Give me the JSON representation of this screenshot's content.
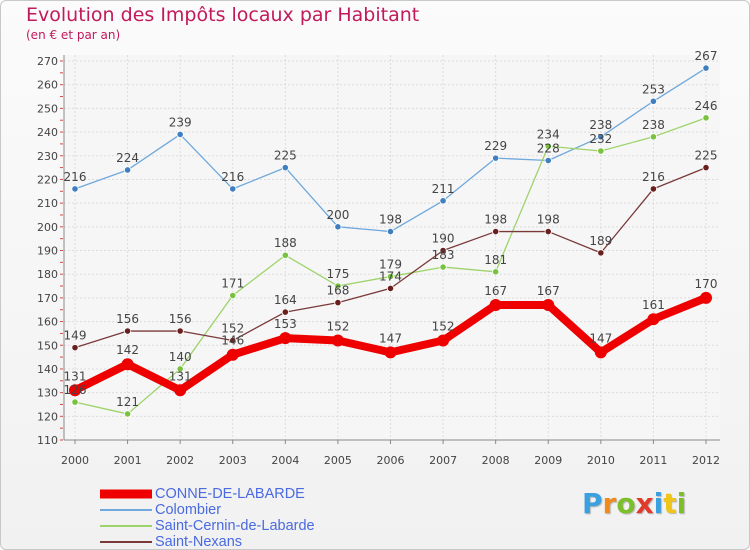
{
  "header": {
    "title": "Evolution des Impôts locaux par Habitant",
    "subtitle": "(en € et par an)"
  },
  "logo": {
    "text": "Proxiti",
    "letters": [
      {
        "ch": "P",
        "color": "#3aa0e0"
      },
      {
        "ch": "r",
        "color": "#f08a1c"
      },
      {
        "ch": "o",
        "color": "#7cbf2a"
      },
      {
        "ch": "x",
        "color": "#e23a2a"
      },
      {
        "ch": "i",
        "color": "#3aa0e0"
      },
      {
        "ch": "t",
        "color": "#f0c419"
      },
      {
        "ch": "i",
        "color": "#7cbf2a"
      }
    ]
  },
  "chart_data": {
    "type": "line",
    "title": "Evolution des Impôts locaux par Habitant",
    "subtitle": "(en € et par an)",
    "xlabel": "",
    "ylabel": "",
    "x": [
      "2000",
      "2001",
      "2002",
      "2003",
      "2004",
      "2005",
      "2006",
      "2007",
      "2008",
      "2009",
      "2010",
      "2011",
      "2012"
    ],
    "ylim": [
      110,
      270
    ],
    "yticks": [
      110,
      120,
      130,
      140,
      150,
      160,
      170,
      180,
      190,
      200,
      210,
      220,
      230,
      240,
      250,
      260,
      270
    ],
    "ytick_labels": [
      "110",
      "120",
      "130",
      "140",
      "150",
      "160",
      "170",
      "180",
      "190",
      "200",
      "210",
      "220",
      "230",
      "240",
      "250",
      "260",
      "270"
    ],
    "grid": true,
    "legend_position": "bottom-left",
    "series": [
      {
        "name": "CONNE-DE-LABARDE",
        "color": "#ee0000",
        "marker_color": "#ee0000",
        "thick": true,
        "values": [
          131,
          142,
          131,
          146,
          153,
          152,
          147,
          152,
          167,
          167,
          147,
          161,
          170
        ],
        "labels": [
          "131",
          "142",
          "131",
          "146",
          "153",
          "152",
          "147",
          "152",
          "167",
          "167",
          "147",
          "161",
          "170"
        ]
      },
      {
        "name": "Colombier",
        "color": "#6fa8dc",
        "marker_color": "#3f7fc0",
        "thick": false,
        "values": [
          216,
          224,
          239,
          216,
          225,
          200,
          198,
          211,
          229,
          228,
          238,
          253,
          267
        ],
        "labels": [
          "216",
          "224",
          "239",
          "216",
          "225",
          "200",
          "198",
          "211",
          "229",
          "228",
          "238",
          "253",
          "267"
        ]
      },
      {
        "name": "Saint-Cernin-de-Labarde",
        "color": "#9ed36a",
        "marker_color": "#79c23f",
        "thick": false,
        "values": [
          126,
          121,
          140,
          171,
          188,
          175,
          179,
          183,
          181,
          234,
          232,
          238,
          246
        ],
        "labels": [
          "126",
          "121",
          "140",
          "171",
          "188",
          "175",
          "179",
          "183",
          "181",
          "234",
          "232",
          "238",
          "246"
        ]
      },
      {
        "name": "Saint-Nexans",
        "color": "#7a3a3a",
        "marker_color": "#6a1f1f",
        "thick": false,
        "values": [
          149,
          156,
          156,
          152,
          164,
          168,
          174,
          190,
          198,
          198,
          189,
          216,
          225
        ],
        "labels": [
          "149",
          "156",
          "156",
          "152",
          "164",
          "168",
          "174",
          "190",
          "198",
          "198",
          "189",
          "216",
          "225"
        ]
      }
    ]
  }
}
